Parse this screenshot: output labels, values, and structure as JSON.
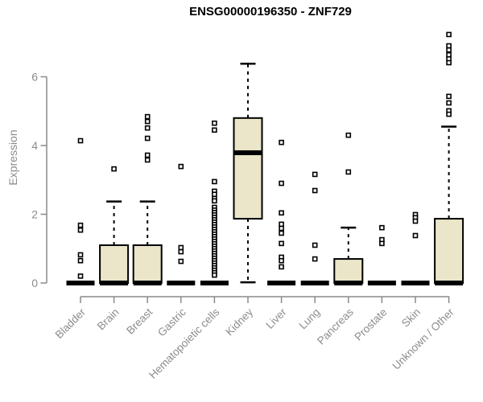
{
  "chart_data": {
    "type": "boxplot",
    "title": "ENSG00000196350 - ZNF729",
    "ylabel": "Expression",
    "xlabel": "",
    "yticks": [
      0,
      2,
      4,
      6
    ],
    "ylim": [
      0,
      7.4
    ],
    "grid": false,
    "legend": "none",
    "colors": {
      "box_fill": "#ebe5c9",
      "box_stroke": "#000000",
      "median": "#000000",
      "axis": "#8a8a8a",
      "tick_label": "#8c8c8c",
      "title": "#000000",
      "background": "#ffffff"
    },
    "categories": [
      "Bladder",
      "Brain",
      "Breast",
      "Gastric",
      "Hematopoietic cells",
      "Kidney",
      "Liver",
      "Lung",
      "Pancreas",
      "Prostate",
      "Skin",
      "Unknown / Other"
    ],
    "boxes": [
      {
        "label": "Bladder",
        "q1": 0,
        "median": 0,
        "q3": 0,
        "whisker_low": 0,
        "whisker_high": 0,
        "outliers": [
          4.14,
          1.68,
          1.54,
          0.82,
          0.65,
          0.2
        ]
      },
      {
        "label": "Brain",
        "q1": 0,
        "median": 0,
        "q3": 1.1,
        "whisker_low": 0,
        "whisker_high": 2.37,
        "outliers": [
          3.32
        ]
      },
      {
        "label": "Breast",
        "q1": 0,
        "median": 0,
        "q3": 1.1,
        "whisker_low": 0,
        "whisker_high": 2.37,
        "outliers": [
          4.84,
          4.7,
          4.51,
          4.21,
          3.72,
          3.58
        ]
      },
      {
        "label": "Gastric",
        "q1": 0,
        "median": 0,
        "q3": 0,
        "whisker_low": 0,
        "whisker_high": 0,
        "outliers": [
          3.39,
          1.03,
          0.91,
          0.63
        ]
      },
      {
        "label": "Hematopoietic cells",
        "q1": 0,
        "median": 0,
        "q3": 0,
        "whisker_low": 0,
        "whisker_high": 0,
        "outliers": [
          4.65,
          4.45,
          2.95,
          2.67,
          2.58,
          2.46,
          2.39,
          2.2,
          2.12,
          2.05,
          1.98,
          1.91,
          1.84,
          1.77,
          1.7,
          1.63,
          1.56,
          1.49,
          1.42,
          1.35,
          1.28,
          1.21,
          1.14,
          1.07,
          1.0,
          0.93,
          0.86,
          0.79,
          0.72,
          0.65,
          0.58,
          0.51,
          0.44,
          0.37,
          0.3,
          0.23
        ]
      },
      {
        "label": "Kidney",
        "q1": 1.87,
        "median": 3.79,
        "q3": 4.8,
        "whisker_low": 0.02,
        "whisker_high": 6.38,
        "outliers": []
      },
      {
        "label": "Liver",
        "q1": 0,
        "median": 0,
        "q3": 0,
        "whisker_low": 0,
        "whisker_high": 0,
        "outliers": [
          4.09,
          2.9,
          2.04,
          1.71,
          1.59,
          1.45,
          1.15,
          0.75,
          0.65,
          0.47
        ]
      },
      {
        "label": "Lung",
        "q1": 0,
        "median": 0,
        "q3": 0,
        "whisker_low": 0,
        "whisker_high": 0,
        "outliers": [
          3.16,
          2.69,
          1.1,
          0.7
        ]
      },
      {
        "label": "Pancreas",
        "q1": 0,
        "median": 0,
        "q3": 0.7,
        "whisker_low": 0,
        "whisker_high": 1.61,
        "outliers": [
          4.3,
          3.23
        ]
      },
      {
        "label": "Prostate",
        "q1": 0,
        "median": 0,
        "q3": 0,
        "whisker_low": 0,
        "whisker_high": 0,
        "outliers": [
          1.61,
          1.26,
          1.15
        ]
      },
      {
        "label": "Skin",
        "q1": 0,
        "median": 0,
        "q3": 0,
        "whisker_low": 0,
        "whisker_high": 0,
        "outliers": [
          1.99,
          1.9,
          1.8,
          1.38
        ]
      },
      {
        "label": "Unknown / Other",
        "q1": 0,
        "median": 0,
        "q3": 1.87,
        "whisker_low": 0,
        "whisker_high": 4.55,
        "outliers": [
          7.23,
          6.9,
          6.78,
          6.64,
          6.52,
          6.41,
          5.43,
          5.24,
          5.01,
          4.91
        ]
      }
    ]
  }
}
